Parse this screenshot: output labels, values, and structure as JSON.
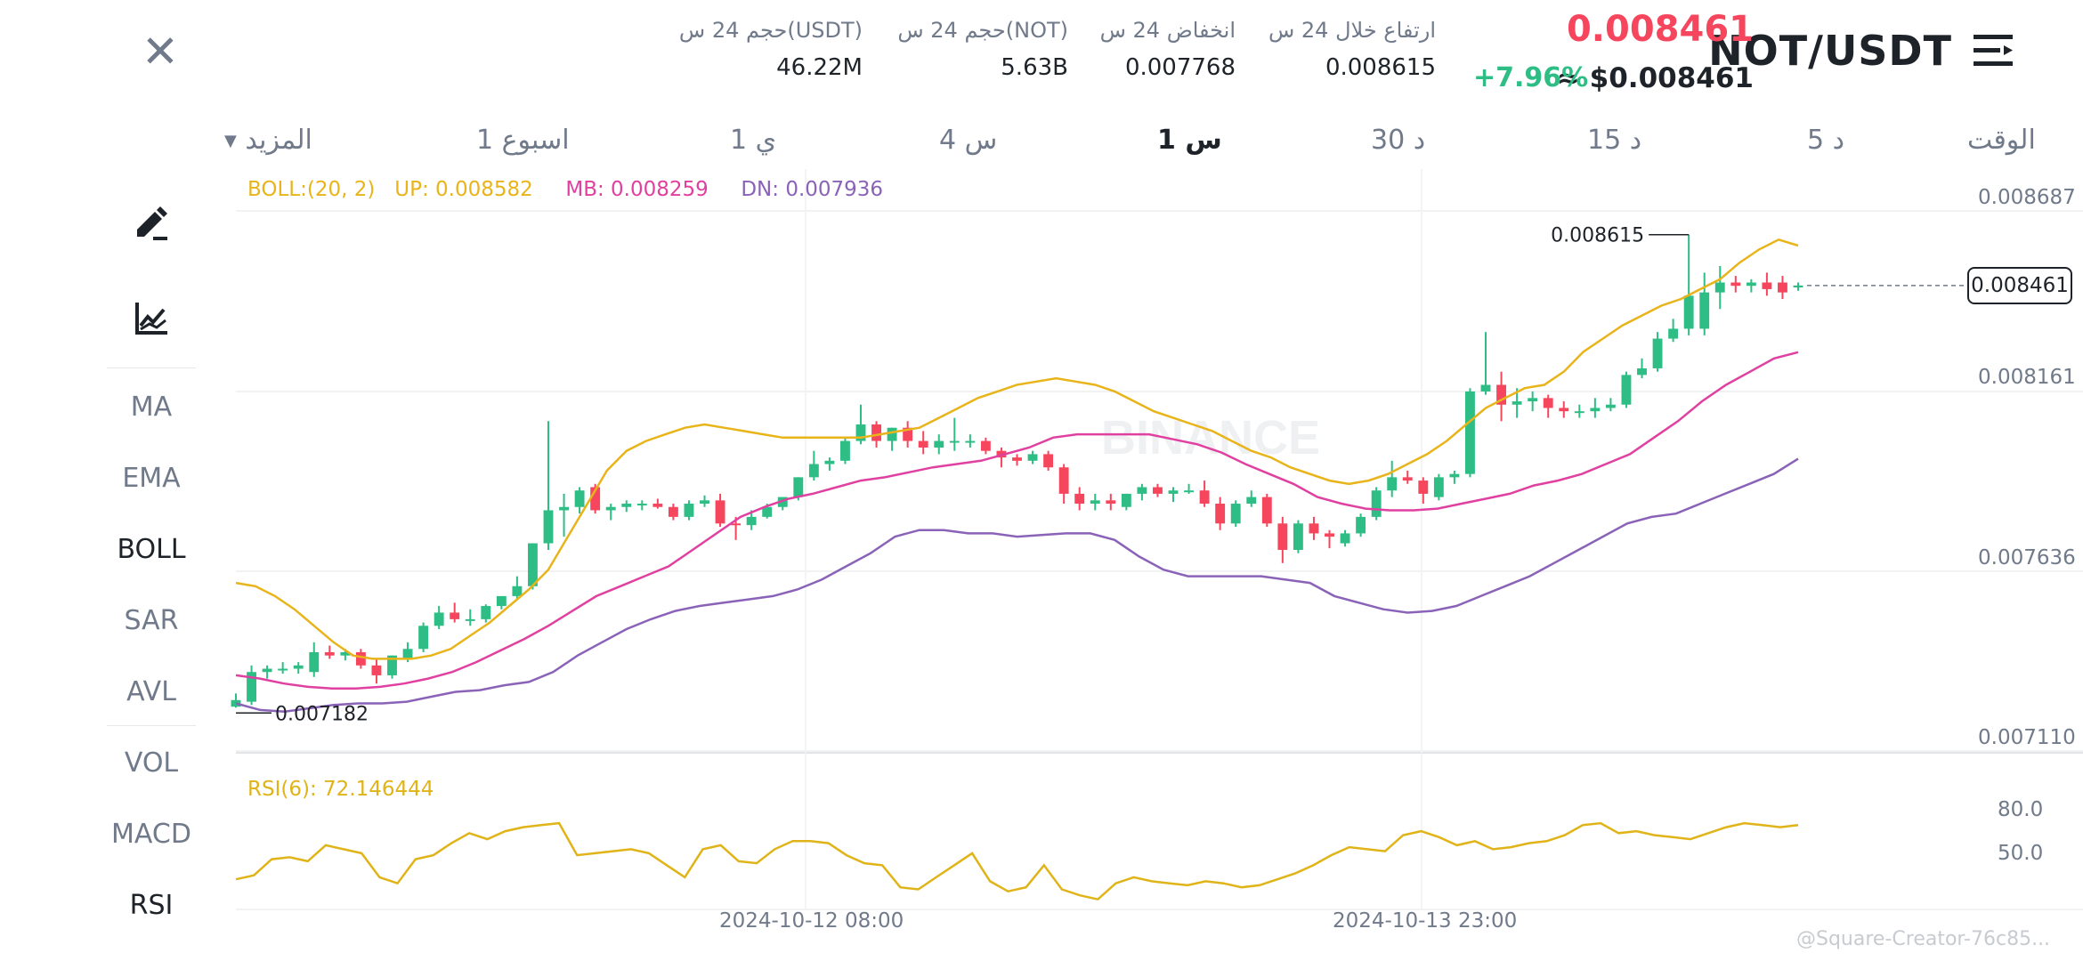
{
  "header": {
    "close_icon": "close-icon",
    "pair": "NOT/USDT",
    "menu_icon": "menu-icon",
    "last_price": "0.008461",
    "usd_price": "≈ $0.008461",
    "change_pct": "+7.96%",
    "stats": [
      {
        "label": "ارتفاع خلال 24 س",
        "value": "0.008615"
      },
      {
        "label": "انخفاض 24 س",
        "value": "0.007768"
      },
      {
        "label": "حجم 24 س(NOT)",
        "value": "5.63B"
      },
      {
        "label": "حجم 24 س(USDT)",
        "value": "46.22M"
      }
    ]
  },
  "timeframes": {
    "label": "الوقت",
    "items": [
      "5 د",
      "15 د",
      "30 د",
      "1 س",
      "4 س",
      "1 ي",
      "1 اسبوع"
    ],
    "active": "1 س",
    "more": "المزيد"
  },
  "sidebar": {
    "tools": [
      "draw-icon",
      "indicator-icon"
    ],
    "main_indicators": [
      "MA",
      "EMA",
      "BOLL",
      "SAR",
      "AVL"
    ],
    "sub_indicators": [
      "VOL",
      "MACD",
      "RSI"
    ],
    "active": [
      "BOLL",
      "RSI"
    ]
  },
  "legend": {
    "boll": "BOLL:(20, 2)",
    "up": "UP: 0.008582",
    "mb": "MB: 0.008259",
    "dn": "DN: 0.007936",
    "rsi": "RSI(6): 72.146444"
  },
  "axis": {
    "price_ticks": [
      "0.008687",
      "0.008161",
      "0.007636",
      "0.007110"
    ],
    "rsi_ticks": [
      "80.0",
      "50.0"
    ],
    "dates": [
      "2024-10-12 08:00",
      "2024-10-13 23:00"
    ],
    "current_price": "0.008461",
    "max_label": "0.008615",
    "min_label": "0.007182"
  },
  "watermark": "BINANCE",
  "footer_watermark": "@Square-Creator-76c85...",
  "colors": {
    "up": "#2ebd85",
    "down": "#f6465d",
    "boll_up": "#e8b41a",
    "boll_mb": "#e040a0",
    "boll_dn": "#8a63b8",
    "rsi": "#e0b418"
  },
  "chart_data": {
    "type": "candlestick",
    "interval": "1h",
    "x": [
      "2024-10-12 08:00",
      "2024-10-13 23:00"
    ],
    "ylim": [
      0.00711,
      0.008687
    ],
    "candles": [
      {
        "o": 0.007185,
        "h": 0.007225,
        "l": 0.007182,
        "c": 0.007205
      },
      {
        "o": 0.0072,
        "h": 0.00731,
        "l": 0.00719,
        "c": 0.00729
      },
      {
        "o": 0.00729,
        "h": 0.00731,
        "l": 0.00727,
        "c": 0.0073
      },
      {
        "o": 0.0073,
        "h": 0.00732,
        "l": 0.007285,
        "c": 0.0073
      },
      {
        "o": 0.0073,
        "h": 0.00732,
        "l": 0.007285,
        "c": 0.00731
      },
      {
        "o": 0.00729,
        "h": 0.00738,
        "l": 0.007275,
        "c": 0.00735
      },
      {
        "o": 0.00735,
        "h": 0.00737,
        "l": 0.00733,
        "c": 0.00734
      },
      {
        "o": 0.00734,
        "h": 0.00736,
        "l": 0.007325,
        "c": 0.00735
      },
      {
        "o": 0.00735,
        "h": 0.00736,
        "l": 0.0073,
        "c": 0.00731
      },
      {
        "o": 0.00731,
        "h": 0.00733,
        "l": 0.007255,
        "c": 0.00728
      },
      {
        "o": 0.00728,
        "h": 0.00734,
        "l": 0.00727,
        "c": 0.00734
      },
      {
        "o": 0.00733,
        "h": 0.00738,
        "l": 0.00732,
        "c": 0.00736
      },
      {
        "o": 0.00736,
        "h": 0.00744,
        "l": 0.00735,
        "c": 0.00743
      },
      {
        "o": 0.00743,
        "h": 0.00749,
        "l": 0.00742,
        "c": 0.00747
      },
      {
        "o": 0.00747,
        "h": 0.0075,
        "l": 0.00744,
        "c": 0.00745
      },
      {
        "o": 0.00745,
        "h": 0.00748,
        "l": 0.00743,
        "c": 0.00745
      },
      {
        "o": 0.00745,
        "h": 0.007495,
        "l": 0.00744,
        "c": 0.00749
      },
      {
        "o": 0.00749,
        "h": 0.00752,
        "l": 0.00748,
        "c": 0.00752
      },
      {
        "o": 0.00752,
        "h": 0.00758,
        "l": 0.00751,
        "c": 0.00755
      },
      {
        "o": 0.00755,
        "h": 0.00768,
        "l": 0.00754,
        "c": 0.00768
      },
      {
        "o": 0.00768,
        "h": 0.00805,
        "l": 0.00766,
        "c": 0.00778
      },
      {
        "o": 0.00778,
        "h": 0.00783,
        "l": 0.0077,
        "c": 0.00779
      },
      {
        "o": 0.00779,
        "h": 0.00785,
        "l": 0.00777,
        "c": 0.00784
      },
      {
        "o": 0.00785,
        "h": 0.00786,
        "l": 0.00777,
        "c": 0.00778
      },
      {
        "o": 0.00778,
        "h": 0.0078,
        "l": 0.00775,
        "c": 0.00779
      },
      {
        "o": 0.00779,
        "h": 0.00781,
        "l": 0.007775,
        "c": 0.0078
      },
      {
        "o": 0.0078,
        "h": 0.00781,
        "l": 0.00778,
        "c": 0.0078
      },
      {
        "o": 0.0078,
        "h": 0.007815,
        "l": 0.007785,
        "c": 0.00779
      },
      {
        "o": 0.00779,
        "h": 0.0078,
        "l": 0.00775,
        "c": 0.00776
      },
      {
        "o": 0.00776,
        "h": 0.00781,
        "l": 0.00775,
        "c": 0.0078
      },
      {
        "o": 0.0078,
        "h": 0.007825,
        "l": 0.00779,
        "c": 0.00781
      },
      {
        "o": 0.00781,
        "h": 0.00783,
        "l": 0.00773,
        "c": 0.00774
      },
      {
        "o": 0.00774,
        "h": 0.00776,
        "l": 0.00769,
        "c": 0.007735
      },
      {
        "o": 0.007735,
        "h": 0.00778,
        "l": 0.00772,
        "c": 0.00776
      },
      {
        "o": 0.00776,
        "h": 0.0078,
        "l": 0.007755,
        "c": 0.00779
      },
      {
        "o": 0.00779,
        "h": 0.00782,
        "l": 0.00778,
        "c": 0.00782
      },
      {
        "o": 0.00782,
        "h": 0.00788,
        "l": 0.00781,
        "c": 0.00788
      },
      {
        "o": 0.00788,
        "h": 0.00796,
        "l": 0.00787,
        "c": 0.00792
      },
      {
        "o": 0.00792,
        "h": 0.00794,
        "l": 0.0079,
        "c": 0.00793
      },
      {
        "o": 0.00793,
        "h": 0.008,
        "l": 0.00792,
        "c": 0.00799
      },
      {
        "o": 0.00799,
        "h": 0.0081,
        "l": 0.00798,
        "c": 0.00804
      },
      {
        "o": 0.00804,
        "h": 0.00805,
        "l": 0.00797,
        "c": 0.00799
      },
      {
        "o": 0.00799,
        "h": 0.00803,
        "l": 0.00796,
        "c": 0.00803
      },
      {
        "o": 0.00803,
        "h": 0.00805,
        "l": 0.00797,
        "c": 0.00799
      },
      {
        "o": 0.00799,
        "h": 0.00802,
        "l": 0.00795,
        "c": 0.00797
      },
      {
        "o": 0.00797,
        "h": 0.00801,
        "l": 0.00795,
        "c": 0.00799
      },
      {
        "o": 0.00799,
        "h": 0.00806,
        "l": 0.00796,
        "c": 0.00799
      },
      {
        "o": 0.00799,
        "h": 0.00801,
        "l": 0.00797,
        "c": 0.00799
      },
      {
        "o": 0.00799,
        "h": 0.008,
        "l": 0.00795,
        "c": 0.00796
      },
      {
        "o": 0.00796,
        "h": 0.00797,
        "l": 0.00791,
        "c": 0.00794
      },
      {
        "o": 0.00794,
        "h": 0.00795,
        "l": 0.007915,
        "c": 0.00793
      },
      {
        "o": 0.00793,
        "h": 0.00796,
        "l": 0.00792,
        "c": 0.00795
      },
      {
        "o": 0.00795,
        "h": 0.00796,
        "l": 0.0079,
        "c": 0.00791
      },
      {
        "o": 0.00791,
        "h": 0.00792,
        "l": 0.0078,
        "c": 0.00783
      },
      {
        "o": 0.00783,
        "h": 0.00785,
        "l": 0.00778,
        "c": 0.0078
      },
      {
        "o": 0.0078,
        "h": 0.00783,
        "l": 0.00778,
        "c": 0.00781
      },
      {
        "o": 0.00781,
        "h": 0.00783,
        "l": 0.00778,
        "c": 0.0078
      },
      {
        "o": 0.00779,
        "h": 0.00783,
        "l": 0.00778,
        "c": 0.00783
      },
      {
        "o": 0.00783,
        "h": 0.00786,
        "l": 0.00781,
        "c": 0.00785
      },
      {
        "o": 0.00785,
        "h": 0.00786,
        "l": 0.00782,
        "c": 0.00783
      },
      {
        "o": 0.00783,
        "h": 0.00785,
        "l": 0.007805,
        "c": 0.00784
      },
      {
        "o": 0.00784,
        "h": 0.00786,
        "l": 0.00783,
        "c": 0.00784
      },
      {
        "o": 0.00784,
        "h": 0.00787,
        "l": 0.00779,
        "c": 0.0078
      },
      {
        "o": 0.0078,
        "h": 0.00782,
        "l": 0.00772,
        "c": 0.00774
      },
      {
        "o": 0.00774,
        "h": 0.00781,
        "l": 0.00773,
        "c": 0.0078
      },
      {
        "o": 0.0078,
        "h": 0.00784,
        "l": 0.00779,
        "c": 0.00782
      },
      {
        "o": 0.00782,
        "h": 0.00783,
        "l": 0.00773,
        "c": 0.00774
      },
      {
        "o": 0.00774,
        "h": 0.00776,
        "l": 0.00762,
        "c": 0.00766
      },
      {
        "o": 0.00766,
        "h": 0.00775,
        "l": 0.00765,
        "c": 0.00774
      },
      {
        "o": 0.00774,
        "h": 0.00776,
        "l": 0.00769,
        "c": 0.00771
      },
      {
        "o": 0.00771,
        "h": 0.00772,
        "l": 0.007665,
        "c": 0.0077
      },
      {
        "o": 0.00768,
        "h": 0.00772,
        "l": 0.00767,
        "c": 0.00771
      },
      {
        "o": 0.00771,
        "h": 0.00777,
        "l": 0.0077,
        "c": 0.00776
      },
      {
        "o": 0.00776,
        "h": 0.00785,
        "l": 0.00775,
        "c": 0.00784
      },
      {
        "o": 0.00784,
        "h": 0.00793,
        "l": 0.00782,
        "c": 0.00788
      },
      {
        "o": 0.00788,
        "h": 0.0079,
        "l": 0.00786,
        "c": 0.00787
      },
      {
        "o": 0.00787,
        "h": 0.00788,
        "l": 0.0078,
        "c": 0.00783
      },
      {
        "o": 0.00782,
        "h": 0.00789,
        "l": 0.00781,
        "c": 0.00788
      },
      {
        "o": 0.00788,
        "h": 0.0079,
        "l": 0.00786,
        "c": 0.00789
      },
      {
        "o": 0.00789,
        "h": 0.00815,
        "l": 0.00788,
        "c": 0.00814
      },
      {
        "o": 0.00814,
        "h": 0.00832,
        "l": 0.00813,
        "c": 0.00816
      },
      {
        "o": 0.00816,
        "h": 0.0082,
        "l": 0.00805,
        "c": 0.0081
      },
      {
        "o": 0.0081,
        "h": 0.00815,
        "l": 0.00806,
        "c": 0.00811
      },
      {
        "o": 0.00811,
        "h": 0.00814,
        "l": 0.00808,
        "c": 0.00812
      },
      {
        "o": 0.00812,
        "h": 0.00813,
        "l": 0.00806,
        "c": 0.00809
      },
      {
        "o": 0.00809,
        "h": 0.00811,
        "l": 0.00806,
        "c": 0.00808
      },
      {
        "o": 0.00808,
        "h": 0.0081,
        "l": 0.00806,
        "c": 0.00808
      },
      {
        "o": 0.00808,
        "h": 0.00812,
        "l": 0.00806,
        "c": 0.00809
      },
      {
        "o": 0.00809,
        "h": 0.00812,
        "l": 0.00808,
        "c": 0.0081
      },
      {
        "o": 0.0081,
        "h": 0.0082,
        "l": 0.00809,
        "c": 0.00819
      },
      {
        "o": 0.00819,
        "h": 0.00824,
        "l": 0.00818,
        "c": 0.00821
      },
      {
        "o": 0.00821,
        "h": 0.00832,
        "l": 0.0082,
        "c": 0.0083
      },
      {
        "o": 0.0083,
        "h": 0.00836,
        "l": 0.00829,
        "c": 0.00833
      },
      {
        "o": 0.00833,
        "h": 0.008615,
        "l": 0.00831,
        "c": 0.00843
      },
      {
        "o": 0.00833,
        "h": 0.0085,
        "l": 0.00831,
        "c": 0.00844
      },
      {
        "o": 0.00844,
        "h": 0.00852,
        "l": 0.00839,
        "c": 0.00847
      },
      {
        "o": 0.00847,
        "h": 0.00849,
        "l": 0.00844,
        "c": 0.00846
      },
      {
        "o": 0.00846,
        "h": 0.00848,
        "l": 0.00844,
        "c": 0.00847
      },
      {
        "o": 0.00847,
        "h": 0.0085,
        "l": 0.00843,
        "c": 0.00845
      },
      {
        "o": 0.00847,
        "h": 0.00849,
        "l": 0.00842,
        "c": 0.00844
      },
      {
        "o": 0.008455,
        "h": 0.00847,
        "l": 0.008445,
        "c": 0.008461
      }
    ],
    "boll_up": [
      0.00756,
      0.00755,
      0.00752,
      0.00748,
      0.00743,
      0.00738,
      0.00734,
      0.00733,
      0.00733,
      0.00733,
      0.00734,
      0.00736,
      0.0074,
      0.00744,
      0.00749,
      0.00754,
      0.0076,
      0.0077,
      0.0078,
      0.0079,
      0.00796,
      0.00799,
      0.00801,
      0.00803,
      0.00804,
      0.00803,
      0.00802,
      0.00801,
      0.008,
      0.008,
      0.008,
      0.008,
      0.008,
      0.00801,
      0.00802,
      0.00803,
      0.00806,
      0.00809,
      0.00812,
      0.00814,
      0.00816,
      0.00817,
      0.00818,
      0.00817,
      0.00816,
      0.00814,
      0.00811,
      0.00808,
      0.00806,
      0.00804,
      0.00802,
      0.00799,
      0.00796,
      0.00794,
      0.00791,
      0.00789,
      0.00787,
      0.00786,
      0.00787,
      0.00789,
      0.00792,
      0.00795,
      0.00799,
      0.00804,
      0.00809,
      0.00812,
      0.00815,
      0.00816,
      0.0082,
      0.00826,
      0.0083,
      0.00834,
      0.00837,
      0.0084,
      0.00842,
      0.00845,
      0.00848,
      0.00853,
      0.00857,
      0.0086,
      0.008582
    ],
    "boll_mb": [
      0.00728,
      0.00727,
      0.007255,
      0.007245,
      0.00724,
      0.00724,
      0.007245,
      0.007255,
      0.00727,
      0.00729,
      0.00732,
      0.007355,
      0.00739,
      0.00743,
      0.007475,
      0.00752,
      0.00755,
      0.00758,
      0.00761,
      0.00766,
      0.00771,
      0.00776,
      0.00779,
      0.007815,
      0.00783,
      0.00785,
      0.00787,
      0.00788,
      0.007895,
      0.00791,
      0.00792,
      0.00793,
      0.00795,
      0.00797,
      0.008,
      0.00801,
      0.00801,
      0.00801,
      0.00801,
      0.007995,
      0.00798,
      0.007955,
      0.00792,
      0.00789,
      0.00786,
      0.00782,
      0.0078,
      0.007785,
      0.00778,
      0.00778,
      0.007785,
      0.0078,
      0.007815,
      0.00783,
      0.007855,
      0.00787,
      0.00789,
      0.00792,
      0.00795,
      0.008,
      0.00805,
      0.00811,
      0.00816,
      0.0082,
      0.00824,
      0.008259
    ],
    "boll_dn": [
      0.007195,
      0.007175,
      0.00717,
      0.00718,
      0.00719,
      0.007195,
      0.007195,
      0.0072,
      0.007215,
      0.00723,
      0.007235,
      0.00725,
      0.00726,
      0.00729,
      0.00734,
      0.00738,
      0.00742,
      0.00745,
      0.007475,
      0.00749,
      0.0075,
      0.00751,
      0.00752,
      0.00754,
      0.00757,
      0.00761,
      0.00765,
      0.0077,
      0.00772,
      0.00772,
      0.00771,
      0.00771,
      0.0077,
      0.007705,
      0.00771,
      0.00771,
      0.00769,
      0.00764,
      0.0076,
      0.00758,
      0.00758,
      0.00758,
      0.00758,
      0.00757,
      0.00756,
      0.00752,
      0.0075,
      0.00748,
      0.00747,
      0.007475,
      0.00749,
      0.00752,
      0.00755,
      0.00758,
      0.00762,
      0.00766,
      0.0077,
      0.00774,
      0.00776,
      0.00777,
      0.0078,
      0.00783,
      0.00786,
      0.00789,
      0.007936
    ],
    "rsi": [
      45,
      47,
      55,
      56,
      54,
      62,
      60,
      58,
      46,
      43,
      55,
      57,
      63,
      68,
      65,
      69,
      71,
      72,
      73,
      57,
      58,
      59,
      60,
      58,
      52,
      46,
      60,
      62,
      54,
      53,
      60,
      64,
      64,
      63,
      57,
      53,
      52,
      41,
      40,
      46,
      52,
      58,
      44,
      39,
      41,
      52,
      40,
      37,
      35,
      43,
      46,
      44,
      43,
      42,
      44,
      43,
      41,
      42,
      45,
      48,
      52,
      57,
      61,
      60,
      59,
      67,
      69,
      66,
      62,
      64,
      60,
      61,
      63,
      64,
      67,
      72,
      73,
      68,
      69,
      67,
      66,
      65,
      68,
      71,
      73,
      72,
      71,
      72
    ]
  }
}
